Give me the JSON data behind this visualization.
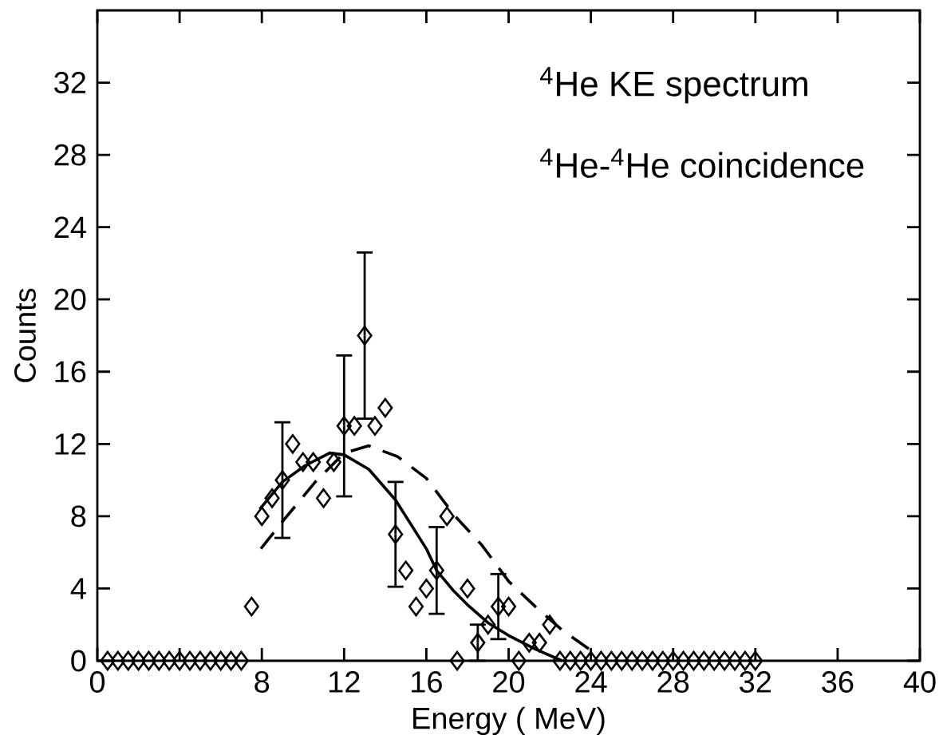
{
  "chart_data": {
    "type": "scatter",
    "xlabel": "Energy ( MeV)",
    "ylabel": "Counts",
    "annotations": [
      "$^{4}$He  KE spectrum",
      "$^{4}$He-$^{4}$He coincidence"
    ],
    "xlim": [
      0,
      40
    ],
    "ylim": [
      0,
      36
    ],
    "xticks": [
      0,
      {
        "value": 4,
        "label": null
      },
      8,
      12,
      16,
      20,
      24,
      28,
      32,
      36,
      40
    ],
    "yticks": [
      0,
      4,
      8,
      12,
      16,
      20,
      24,
      28,
      32
    ],
    "grid": false,
    "series": [
      {
        "color": "#000000",
        "marker": "diamond",
        "x": [
          0.5,
          1,
          1.5,
          2,
          2.5,
          3,
          3.5,
          4,
          4.5,
          5,
          5.5,
          6,
          6.5,
          7,
          7.5,
          8,
          8.5,
          9,
          9.5,
          10,
          10.5,
          11,
          11.5,
          12,
          12.5,
          13,
          13.5,
          14,
          14.5,
          15,
          15.5,
          16,
          16.5,
          17,
          17.5,
          18,
          18.5,
          19,
          19.5,
          20,
          20.5,
          21,
          21.5,
          22,
          22.5,
          23,
          23.5,
          24,
          24.5,
          25,
          25.5,
          26,
          26.5,
          27,
          27.5,
          28,
          28.5,
          29,
          29.5,
          30,
          30.5,
          31,
          31.5,
          32
        ],
        "values": [
          0,
          0,
          0,
          0,
          0,
          0,
          0,
          0,
          0,
          0,
          0,
          0,
          0,
          0,
          3,
          8,
          9,
          10,
          12,
          11,
          11,
          9,
          11,
          13,
          13,
          18,
          13,
          14,
          7,
          5,
          3,
          4,
          5,
          8,
          0,
          4,
          1,
          2,
          3,
          3,
          0,
          1,
          1,
          2,
          0,
          0,
          0,
          0,
          0,
          0,
          0,
          0,
          0,
          0,
          0,
          0,
          0,
          0,
          0,
          0,
          0,
          0,
          0,
          0
        ],
        "errors": [
          null,
          null,
          null,
          null,
          null,
          null,
          null,
          null,
          null,
          null,
          null,
          null,
          null,
          null,
          null,
          null,
          null,
          3.2,
          null,
          null,
          null,
          null,
          null,
          3.9,
          null,
          4.6,
          null,
          null,
          2.9,
          null,
          null,
          null,
          2.4,
          null,
          null,
          null,
          1.0,
          null,
          1.8,
          null,
          null,
          null,
          null,
          null,
          null,
          null,
          null,
          null,
          null,
          null,
          null,
          null,
          null,
          null,
          null,
          null,
          null,
          null,
          null,
          null,
          null,
          null,
          null,
          null
        ]
      },
      {
        "type": "line",
        "color": "#000000",
        "marker": "none",
        "line_style": "solid",
        "x": [
          7.9,
          9,
          10.1,
          11.3,
          12,
          13.2,
          14.5,
          16,
          16.5,
          17.3,
          18,
          19,
          20,
          21.3,
          22.6
        ],
        "values": [
          8.4,
          9.9,
          10.8,
          11.5,
          11.4,
          10.6,
          8.9,
          6.2,
          5.0,
          3.9,
          3.1,
          2.1,
          1.4,
          0.65,
          0
        ]
      },
      {
        "type": "line",
        "color": "#000000",
        "marker": "none",
        "line_style": "dashed",
        "x": [
          7.95,
          9,
          10.6,
          12,
          13.2,
          14.6,
          16,
          17.4,
          18.7,
          20,
          21.3,
          22.6,
          24.1
        ],
        "values": [
          6.2,
          7.7,
          9.9,
          11.5,
          11.9,
          11.3,
          10.1,
          8.0,
          6.4,
          4.4,
          3.0,
          1.7,
          0.5
        ]
      }
    ]
  }
}
